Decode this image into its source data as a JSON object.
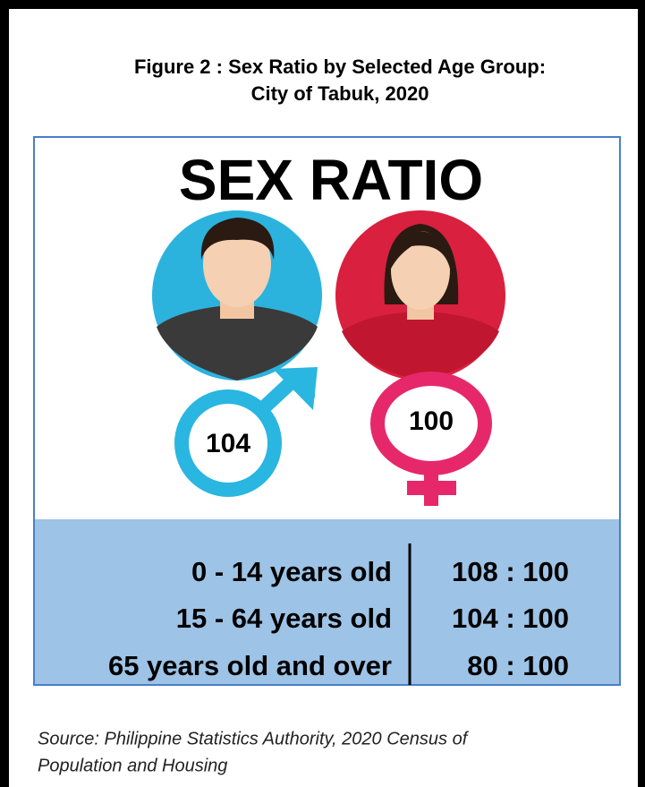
{
  "header": {
    "title_lines": [
      "Figure 2 : Sex Ratio by Selected Age Group:",
      "City of Tabuk, 2020"
    ]
  },
  "infographic": {
    "heading": "SEX RATIO",
    "male_label": "104",
    "female_label": "100"
  },
  "table": {
    "rows": [
      [
        "0 - 14 years old",
        "108 : 100"
      ],
      [
        "15 - 64 years old",
        "104 : 100"
      ],
      [
        "65 years old and over",
        "80 : 100"
      ]
    ]
  },
  "source_lines": [
    "Source: Philippine Statistics Authority, 2020 Census of",
    "Population and Housing"
  ]
}
